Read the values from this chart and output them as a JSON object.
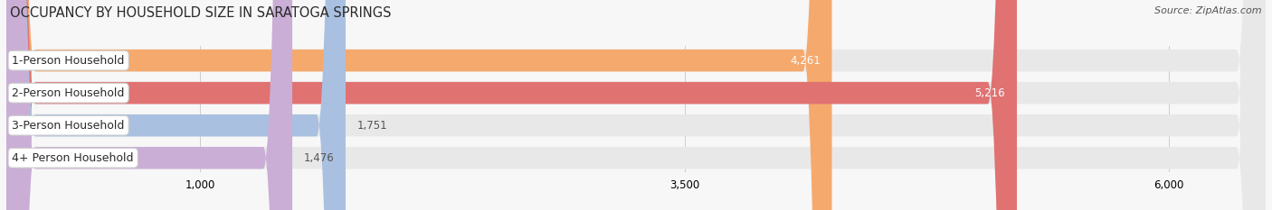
{
  "title": "OCCUPANCY BY HOUSEHOLD SIZE IN SARATOGA SPRINGS",
  "source": "Source: ZipAtlas.com",
  "categories": [
    "1-Person Household",
    "2-Person Household",
    "3-Person Household",
    "4+ Person Household"
  ],
  "values": [
    4261,
    5216,
    1751,
    1476
  ],
  "bar_colors": [
    "#f5a96d",
    "#e07272",
    "#aac0e0",
    "#caaed6"
  ],
  "row_bg_color": "#e8e8e8",
  "xlim_max": 6500,
  "xticks": [
    1000,
    3500,
    6000
  ],
  "bg_color": "#f7f7f7",
  "title_fontsize": 10.5,
  "source_fontsize": 8,
  "label_fontsize": 9,
  "value_fontsize": 8.5,
  "tick_fontsize": 8.5
}
